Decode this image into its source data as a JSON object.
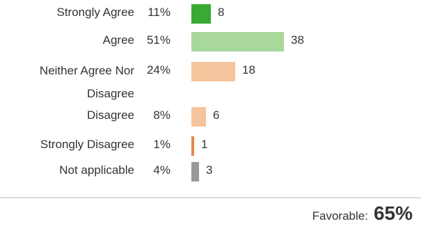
{
  "chart_data": {
    "type": "bar",
    "orientation": "horizontal",
    "categories": [
      "Strongly Agree",
      "Agree",
      "Neither Agree Nor Disagree",
      "Disagree",
      "Strongly Disagree",
      "Not applicable"
    ],
    "percents": [
      "11%",
      "51%",
      "24%",
      "8%",
      "1%",
      "4%"
    ],
    "values": [
      8,
      38,
      18,
      6,
      1,
      3
    ],
    "colors": [
      "#3aaa35",
      "#a8d89a",
      "#f5c49c",
      "#f5c49c",
      "#e8844a",
      "#999999"
    ],
    "grid": false,
    "legend": "none"
  },
  "summary": {
    "label": "Favorable:",
    "value": "65%"
  }
}
